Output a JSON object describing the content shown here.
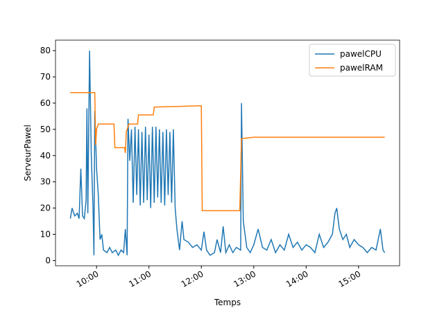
{
  "chart_data": {
    "type": "line",
    "x_label": "Temps",
    "y_label": "ServeurPawel",
    "xlim": [
      "09:13",
      "15:47"
    ],
    "xticks": [
      "10:00",
      "11:00",
      "12:00",
      "13:00",
      "14:00",
      "15:00"
    ],
    "ylim": [
      -2,
      84
    ],
    "yticks": [
      0,
      10,
      20,
      30,
      40,
      50,
      60,
      70,
      80
    ],
    "legend": "upper right",
    "grid": false,
    "series": [
      {
        "name": "pawelCPU",
        "color": "#1f77b4",
        "x": [
          "09:30",
          "09:32",
          "09:35",
          "09:38",
          "09:40",
          "09:42",
          "09:44",
          "09:46",
          "09:48",
          "09:49",
          "09:50",
          "09:52",
          "09:54",
          "09:56",
          "09:57",
          "09:58",
          "10:00",
          "10:02",
          "10:04",
          "10:06",
          "10:08",
          "10:12",
          "10:15",
          "10:18",
          "10:22",
          "10:25",
          "10:28",
          "10:31",
          "10:33",
          "10:35",
          "10:36",
          "10:38",
          "10:40",
          "10:42",
          "10:44",
          "10:46",
          "10:48",
          "10:50",
          "10:52",
          "10:54",
          "10:56",
          "10:58",
          "11:00",
          "11:02",
          "11:04",
          "11:06",
          "11:08",
          "11:10",
          "11:12",
          "11:14",
          "11:16",
          "11:18",
          "11:20",
          "11:22",
          "11:24",
          "11:26",
          "11:28",
          "11:30",
          "11:32",
          "11:35",
          "11:38",
          "11:40",
          "11:45",
          "11:50",
          "11:55",
          "12:00",
          "12:03",
          "12:06",
          "12:10",
          "12:15",
          "12:18",
          "12:22",
          "12:25",
          "12:28",
          "12:32",
          "12:36",
          "12:40",
          "12:45",
          "12:46",
          "12:48",
          "12:52",
          "12:56",
          "13:00",
          "13:05",
          "13:10",
          "13:15",
          "13:20",
          "13:25",
          "13:30",
          "13:35",
          "13:40",
          "13:45",
          "13:50",
          "13:55",
          "14:00",
          "14:05",
          "14:10",
          "14:15",
          "14:20",
          "14:25",
          "14:30",
          "14:33",
          "14:35",
          "14:38",
          "14:42",
          "14:46",
          "14:50",
          "14:55",
          "15:00",
          "15:05",
          "15:10",
          "15:15",
          "15:20",
          "15:25",
          "15:28",
          "15:30"
        ],
        "values": [
          16,
          20,
          17,
          18,
          16,
          35,
          17,
          16,
          23,
          58,
          18,
          80,
          40,
          20,
          2,
          57,
          35,
          25,
          8,
          10,
          4,
          3,
          5,
          3,
          4,
          2,
          4,
          3,
          12,
          2,
          54,
          38,
          50,
          22,
          51,
          25,
          50,
          21,
          49,
          22,
          51,
          23,
          48,
          20,
          51,
          22,
          51,
          24,
          50,
          22,
          49,
          21,
          50,
          25,
          49,
          22,
          50,
          20,
          12,
          4,
          15,
          8,
          7,
          5,
          6,
          4,
          11,
          4,
          2,
          3,
          8,
          3,
          13,
          3,
          6,
          3,
          5,
          4,
          60,
          15,
          5,
          3,
          6,
          12,
          5,
          4,
          8,
          3,
          6,
          4,
          10,
          5,
          7,
          4,
          6,
          5,
          3,
          10,
          5,
          7,
          10,
          18,
          20,
          12,
          8,
          10,
          5,
          8,
          6,
          5,
          3,
          5,
          4,
          12,
          4,
          3
        ]
      },
      {
        "name": "pawelRAM",
        "color": "#ff7f0e",
        "x": [
          "09:30",
          "09:58",
          "09:59",
          "10:00",
          "10:02",
          "10:20",
          "10:21",
          "10:32",
          "10:33",
          "10:34",
          "10:37",
          "10:47",
          "10:48",
          "11:05",
          "11:06",
          "12:00",
          "12:01",
          "12:44",
          "12:46",
          "13:00",
          "15:30"
        ],
        "values": [
          64,
          64,
          44,
          50,
          52,
          52,
          43,
          43,
          41,
          49,
          52,
          52,
          55.5,
          55.5,
          58.5,
          59,
          19,
          19,
          46.5,
          47,
          47
        ]
      }
    ]
  }
}
